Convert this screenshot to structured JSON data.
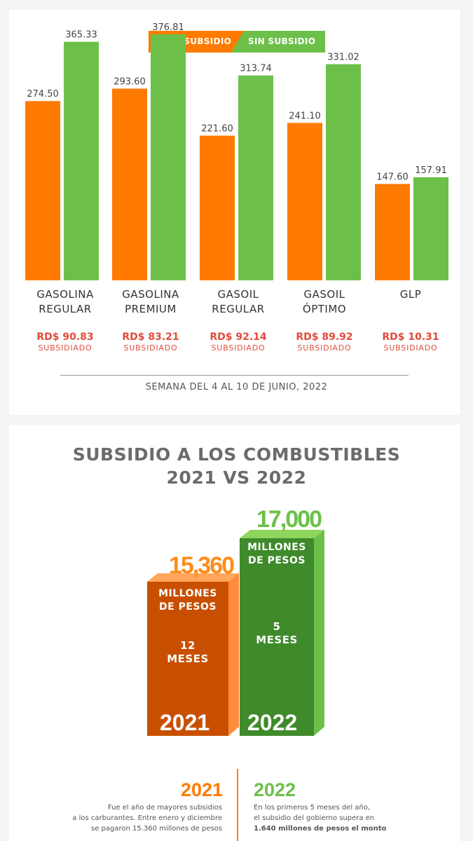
{
  "legend": {
    "with_subsidy": "CON SUBSIDIO",
    "without_subsidy": "SIN SUBSIDIO"
  },
  "colors": {
    "orange": "#ff7a00",
    "green": "#6cc04a",
    "red": "#e24a3b"
  },
  "chart_data": [
    {
      "type": "bar",
      "title": "",
      "categories": [
        [
          "GASOLINA",
          "REGULAR"
        ],
        [
          "GASOLINA",
          "PREMIUM"
        ],
        [
          "GASOIL",
          "REGULAR"
        ],
        [
          "GASOIL",
          "ÓPTIMO"
        ],
        [
          "GLP",
          ""
        ]
      ],
      "series": [
        {
          "name": "CON SUBSIDIO",
          "values": [
            274.5,
            293.6,
            221.6,
            241.1,
            147.6
          ],
          "labels": [
            "274.50",
            "293.60",
            "221.60",
            "241.10",
            "147.60"
          ]
        },
        {
          "name": "SIN SUBSIDIO",
          "values": [
            365.33,
            376.81,
            313.74,
            331.02,
            157.91
          ],
          "labels": [
            "365.33",
            "376.81",
            "313.74",
            "331.02",
            "157.91"
          ]
        }
      ],
      "ylim": [
        0,
        410
      ],
      "subsidies": [
        {
          "value": "RD$ 90.83",
          "label": "SUBSIDIADO"
        },
        {
          "value": "RD$ 83.21",
          "label": "SUBSIDIADO"
        },
        {
          "value": "RD$ 92.14",
          "label": "SUBSIDIADO"
        },
        {
          "value": "RD$ 89.92",
          "label": "SUBSIDIADO"
        },
        {
          "value": "RD$ 10.31",
          "label": "SUBSIDIADO"
        }
      ],
      "footer": "SEMANA DEL 4 AL 10 DE JUNIO, 2022"
    },
    {
      "type": "bar",
      "title": "SUBSIDIO A LOS COMBUSTIBLES",
      "subtitle": "2021 VS 2022",
      "categories": [
        "2021",
        "2022"
      ],
      "values": [
        15360,
        17000
      ],
      "value_labels": [
        "15,360",
        "17,000"
      ],
      "unit": [
        "MILLONES",
        "DE PESOS"
      ],
      "unit_2022": [
        "MILLONES",
        "DE PESOS"
      ],
      "period_2021": [
        "12",
        "MESES"
      ],
      "period_2022": [
        "5",
        "MESES"
      ]
    }
  ],
  "info": {
    "left": {
      "year": "2021",
      "lines": [
        "Fue el año de mayores subsidios",
        "a los carburantes. Entre enero y diciembre",
        "se pagaron 15.360 millones de pesos"
      ]
    },
    "right": {
      "year": "2022",
      "lines": [
        "En los primeros 5 meses del año,",
        "el subsidio del gobierno supera en",
        "1.640 millones de pesos el monto"
      ]
    }
  }
}
